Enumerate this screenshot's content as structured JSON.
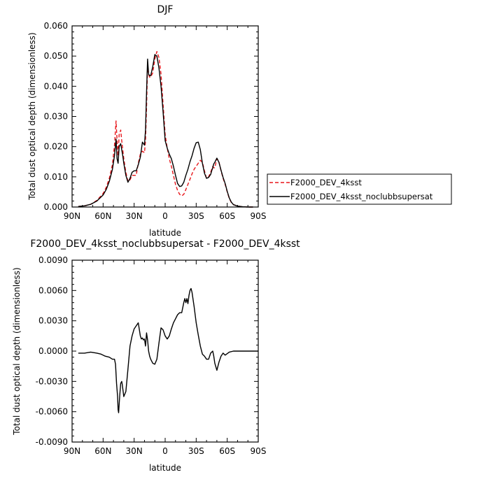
{
  "chart_data": [
    {
      "type": "line",
      "title": "DJF",
      "xlabel": "latitude",
      "ylabel": "Total dust optical depth (dimensionless)",
      "xlim": [
        90,
        -90
      ],
      "ylim": [
        0,
        0.06
      ],
      "x_tick_values": [
        90,
        60,
        30,
        0,
        -30,
        -60,
        -90
      ],
      "x_tick_labels": [
        "90N",
        "60N",
        "30N",
        "0",
        "30S",
        "60S",
        "90S"
      ],
      "y_tick_values": [
        0,
        0.01,
        0.02,
        0.03,
        0.04,
        0.05,
        0.06
      ],
      "y_tick_labels": [
        "0.000",
        "0.010",
        "0.020",
        "0.030",
        "0.040",
        "0.050",
        "0.060"
      ],
      "grid": false,
      "legend_placement": "right",
      "series": [
        {
          "name": "F2000_DEV_4ksst",
          "color": "#e8161b",
          "dash": "dashed",
          "x": [
            84,
            78,
            72,
            66,
            60,
            57,
            54,
            51,
            49,
            47.5,
            46.5,
            45.5,
            44.5,
            43,
            42,
            41,
            40,
            38,
            36,
            34,
            32,
            30,
            28,
            26,
            24,
            22,
            20,
            19,
            18,
            17,
            16,
            15,
            14,
            12,
            10,
            8,
            6,
            4,
            2,
            0,
            -2,
            -4,
            -6,
            -8,
            -10,
            -12,
            -14,
            -16,
            -18,
            -20,
            -22,
            -24,
            -26,
            -28,
            -30,
            -32,
            -34,
            -36,
            -38,
            -40,
            -42,
            -44,
            -45,
            -46,
            -47,
            -48,
            -50,
            -52,
            -54,
            -56,
            -58,
            -60,
            -62,
            -64,
            -66,
            -70,
            -75,
            -80,
            -85
          ],
          "values": [
            0.0002,
            0.0004,
            0.0009,
            0.0022,
            0.0045,
            0.0065,
            0.0095,
            0.014,
            0.0205,
            0.0285,
            0.022,
            0.017,
            0.024,
            0.0255,
            0.022,
            0.019,
            0.016,
            0.0115,
            0.0085,
            0.009,
            0.0105,
            0.0105,
            0.0105,
            0.0145,
            0.0175,
            0.0185,
            0.018,
            0.022,
            0.033,
            0.047,
            0.044,
            0.043,
            0.043,
            0.0445,
            0.049,
            0.0515,
            0.0495,
            0.044,
            0.034,
            0.024,
            0.0195,
            0.016,
            0.0135,
            0.0105,
            0.0075,
            0.0055,
            0.0042,
            0.0037,
            0.0042,
            0.0058,
            0.0075,
            0.0092,
            0.011,
            0.0125,
            0.0135,
            0.0145,
            0.0155,
            0.0148,
            0.012,
            0.0095,
            0.01,
            0.0115,
            0.0125,
            0.0135,
            0.013,
            0.013,
            0.016,
            0.015,
            0.012,
            0.0095,
            0.0075,
            0.005,
            0.0028,
            0.0015,
            0.0008,
            0.0003,
            0.0001,
            0,
            0
          ]
        },
        {
          "name": "F2000_DEV_4ksst_noclubbsupersat",
          "color": "#000000",
          "dash": "solid",
          "x": [
            84,
            78,
            72,
            66,
            60,
            57,
            54,
            51,
            49,
            47.5,
            46.5,
            45.5,
            44.5,
            43,
            42,
            41,
            40,
            38,
            36,
            34,
            32,
            30,
            28,
            26,
            24,
            22,
            20,
            19,
            18,
            17,
            16,
            15,
            14,
            12,
            10,
            8,
            6,
            4,
            2,
            0,
            -2,
            -4,
            -6,
            -8,
            -10,
            -12,
            -14,
            -16,
            -18,
            -20,
            -22,
            -24,
            -26,
            -28,
            -30,
            -32,
            -34,
            -36,
            -38,
            -40,
            -42,
            -44,
            -45,
            -46,
            -47,
            -48,
            -50,
            -52,
            -54,
            -56,
            -58,
            -60,
            -62,
            -64,
            -66,
            -70,
            -75,
            -80,
            -85
          ],
          "values": [
            0.0002,
            0.0004,
            0.0009,
            0.002,
            0.004,
            0.0058,
            0.0085,
            0.0125,
            0.017,
            0.0225,
            0.016,
            0.0145,
            0.02,
            0.021,
            0.019,
            0.017,
            0.0145,
            0.0105,
            0.0082,
            0.0095,
            0.0115,
            0.012,
            0.012,
            0.014,
            0.0165,
            0.0215,
            0.0205,
            0.0255,
            0.038,
            0.049,
            0.044,
            0.0435,
            0.0435,
            0.0465,
            0.0505,
            0.05,
            0.046,
            0.04,
            0.0315,
            0.022,
            0.0195,
            0.0175,
            0.016,
            0.0135,
            0.0105,
            0.0078,
            0.0068,
            0.007,
            0.0082,
            0.0105,
            0.0125,
            0.015,
            0.017,
            0.0195,
            0.0213,
            0.0215,
            0.019,
            0.0145,
            0.0112,
            0.0095,
            0.0098,
            0.0108,
            0.012,
            0.013,
            0.0143,
            0.0148,
            0.0162,
            0.0148,
            0.0122,
            0.0098,
            0.0078,
            0.0052,
            0.003,
            0.0016,
            0.0008,
            0.0003,
            0.0001,
            0,
            0
          ]
        }
      ]
    },
    {
      "type": "line",
      "title": "F2000_DEV_4ksst_noclubbsupersat - F2000_DEV_4ksst",
      "xlabel": "latitude",
      "ylabel": "Total dust optical depth (dimensionless)",
      "xlim": [
        90,
        -90
      ],
      "ylim": [
        -0.009,
        0.009
      ],
      "x_tick_values": [
        90,
        60,
        30,
        0,
        -30,
        -60,
        -90
      ],
      "x_tick_labels": [
        "90N",
        "60N",
        "30N",
        "0",
        "30S",
        "60S",
        "90S"
      ],
      "y_tick_values": [
        -0.009,
        -0.006,
        -0.003,
        0,
        0.003,
        0.006,
        0.009
      ],
      "y_tick_labels": [
        "-0.0090",
        "-0.0060",
        "-0.0030",
        "0.0000",
        "0.0030",
        "0.0060",
        "0.0090"
      ],
      "grid": false,
      "series": [
        {
          "color": "#000000",
          "dash": "solid",
          "x": [
            84,
            78,
            72,
            66,
            62,
            58,
            54,
            51,
            49,
            48,
            47,
            46,
            45.5,
            45,
            44,
            43,
            42,
            41.5,
            40,
            38,
            36,
            34,
            32,
            30,
            28,
            26,
            24,
            23,
            22,
            21,
            20,
            19,
            18,
            17,
            16,
            15,
            14,
            12,
            10,
            8,
            6,
            4,
            2,
            0,
            -2,
            -4,
            -6,
            -8,
            -10,
            -12,
            -14,
            -16,
            -18,
            -19,
            -20,
            -21,
            -22,
            -23,
            -24,
            -25,
            -26,
            -28,
            -30,
            -32,
            -34,
            -36,
            -38,
            -40,
            -42,
            -44,
            -46,
            -47,
            -48,
            -50,
            -52,
            -54,
            -56,
            -58,
            -62,
            -66,
            -72,
            -80,
            -90
          ],
          "values": [
            -0.0002,
            -0.0002,
            -0.0001,
            -0.0002,
            -0.0003,
            -0.0005,
            -0.0006,
            -0.0008,
            -0.0008,
            -0.0013,
            -0.0032,
            -0.0045,
            -0.0058,
            -0.0061,
            -0.0045,
            -0.0032,
            -0.003,
            -0.0033,
            -0.0045,
            -0.004,
            -0.0018,
            0.0005,
            0.0015,
            0.0022,
            0.0025,
            0.0028,
            0.0015,
            0.0012,
            0.0013,
            0.0011,
            0.0012,
            0.0005,
            0.0018,
            0.0011,
            0.0,
            -0.0005,
            -0.0008,
            -0.0012,
            -0.0013,
            -0.0008,
            0.0008,
            0.0023,
            0.0021,
            0.0015,
            0.0012,
            0.0015,
            0.0022,
            0.0028,
            0.0032,
            0.0036,
            0.0038,
            0.0038,
            0.0048,
            0.0052,
            0.0048,
            0.0052,
            0.0047,
            0.0055,
            0.006,
            0.0062,
            0.0058,
            0.0044,
            0.0028,
            0.0016,
            0.0005,
            -0.0003,
            -0.0005,
            -0.0008,
            -0.0008,
            -0.0002,
            0.0,
            -0.0005,
            -0.0012,
            -0.0019,
            -0.0011,
            -0.0005,
            -0.0002,
            -0.0004,
            -0.0001,
            0,
            0,
            0,
            0
          ]
        }
      ]
    }
  ]
}
